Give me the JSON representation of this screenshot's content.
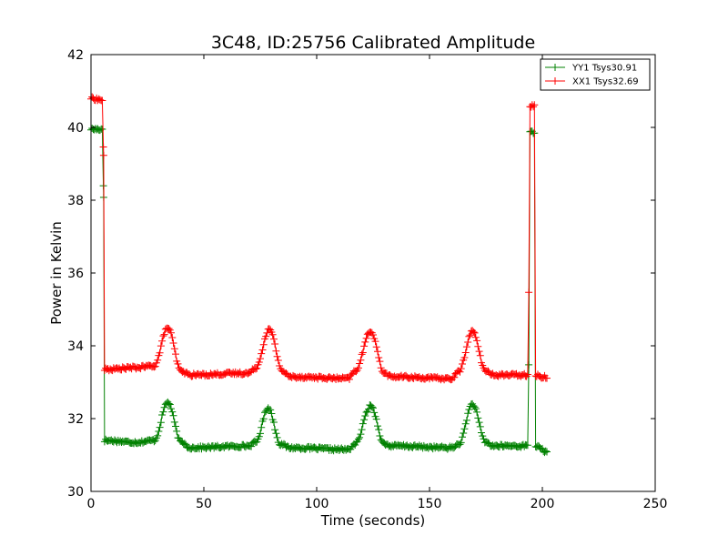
{
  "chart_data": {
    "type": "line",
    "title": "3C48, ID:25756 Calibrated Amplitude",
    "xlabel": "Time (seconds)",
    "ylabel": "Power in Kelvin",
    "xlim": [
      0,
      250
    ],
    "ylim": [
      30,
      42
    ],
    "xticks": [
      0,
      50,
      100,
      150,
      200,
      250
    ],
    "yticks": [
      30,
      32,
      34,
      36,
      38,
      40,
      42
    ],
    "grid": false,
    "legend_position": "top-right",
    "marker": "plus",
    "sample_interval_seconds": 0.5,
    "series": [
      {
        "name": "YY1 Tsys30.91",
        "color": "#008000",
        "keypoints": [
          [
            0,
            39.95
          ],
          [
            5,
            39.95
          ],
          [
            5.6,
            38.1
          ],
          [
            6,
            31.4
          ],
          [
            20,
            31.35
          ],
          [
            28,
            31.4
          ],
          [
            34,
            32.45
          ],
          [
            40,
            31.35
          ],
          [
            44,
            31.2
          ],
          [
            70,
            31.25
          ],
          [
            73,
            31.35
          ],
          [
            78.5,
            32.3
          ],
          [
            84,
            31.3
          ],
          [
            88,
            31.2
          ],
          [
            114,
            31.15
          ],
          [
            117,
            31.3
          ],
          [
            124,
            32.35
          ],
          [
            130,
            31.3
          ],
          [
            133,
            31.25
          ],
          [
            160,
            31.2
          ],
          [
            163,
            31.3
          ],
          [
            169,
            32.4
          ],
          [
            175,
            31.35
          ],
          [
            178,
            31.25
          ],
          [
            193.5,
            31.25
          ],
          [
            194,
            33.5
          ],
          [
            194.5,
            39.9
          ],
          [
            196.5,
            39.85
          ],
          [
            197,
            31.25
          ],
          [
            200,
            31.15
          ],
          [
            202,
            31.05
          ]
        ]
      },
      {
        "name": "XX1 Tsys32.69",
        "color": "#ff0000",
        "keypoints": [
          [
            0,
            40.8
          ],
          [
            5,
            40.75
          ],
          [
            5.6,
            39.2
          ],
          [
            6,
            33.35
          ],
          [
            20,
            33.4
          ],
          [
            28,
            33.45
          ],
          [
            34,
            34.5
          ],
          [
            40,
            33.3
          ],
          [
            44,
            33.2
          ],
          [
            70,
            33.25
          ],
          [
            73,
            33.4
          ],
          [
            79,
            34.45
          ],
          [
            85,
            33.3
          ],
          [
            88,
            33.15
          ],
          [
            114,
            33.1
          ],
          [
            117,
            33.3
          ],
          [
            124,
            34.4
          ],
          [
            130,
            33.25
          ],
          [
            133,
            33.15
          ],
          [
            160,
            33.1
          ],
          [
            163,
            33.3
          ],
          [
            169,
            34.4
          ],
          [
            175,
            33.3
          ],
          [
            178,
            33.2
          ],
          [
            193.5,
            33.2
          ],
          [
            194,
            35.5
          ],
          [
            194.5,
            40.6
          ],
          [
            196.5,
            40.6
          ],
          [
            197,
            33.2
          ],
          [
            199,
            33.15
          ],
          [
            202,
            33.15
          ]
        ]
      }
    ]
  }
}
